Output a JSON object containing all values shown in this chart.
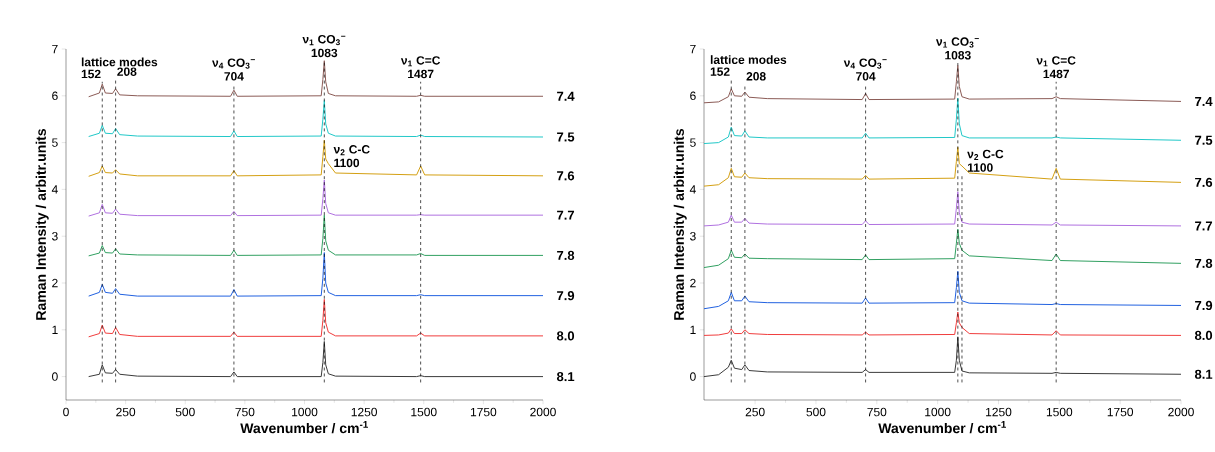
{
  "chart_data": [
    {
      "type": "line",
      "xlabel": "Wavenumber / cm$^{-1}$",
      "ylabel": "Raman Intensity / arbitr.units",
      "xlim": [
        0,
        2000
      ],
      "ylim": [
        -0.5,
        7
      ],
      "xticks": [
        0,
        250,
        500,
        750,
        1000,
        1250,
        1500,
        1750,
        2000
      ],
      "yticks": [
        0,
        1,
        2,
        3,
        4,
        5,
        6,
        7
      ],
      "x": [
        95,
        140,
        152,
        165,
        195,
        208,
        225,
        300,
        690,
        704,
        718,
        1070,
        1077,
        1083,
        1089,
        1100,
        1130,
        1470,
        1487,
        1504,
        2000
      ],
      "series": [
        {
          "name": "8.1",
          "color": "#3a3a3a",
          "values": [
            0,
            0.05,
            0.25,
            0.08,
            0.07,
            0.15,
            0.05,
            0.01,
            0,
            0.1,
            0,
            0,
            0.3,
            0.75,
            0.25,
            0.06,
            0.01,
            0,
            0.02,
            0,
            0
          ]
        },
        {
          "name": "8.0",
          "color": "#f03c3c",
          "values": [
            0.85,
            0.92,
            1.1,
            0.93,
            0.92,
            1.05,
            0.9,
            0.86,
            0.86,
            0.95,
            0.86,
            0.86,
            1.2,
            1.65,
            1.15,
            0.95,
            0.87,
            0.87,
            0.93,
            0.87,
            0.87
          ]
        },
        {
          "name": "7.9",
          "color": "#2060e0",
          "values": [
            1.72,
            1.8,
            1.97,
            1.8,
            1.78,
            1.88,
            1.76,
            1.72,
            1.72,
            1.86,
            1.72,
            1.73,
            2.1,
            2.65,
            2.0,
            1.8,
            1.73,
            1.73,
            1.75,
            1.73,
            1.73
          ]
        },
        {
          "name": "7.8",
          "color": "#30a060",
          "values": [
            2.58,
            2.64,
            2.8,
            2.65,
            2.64,
            2.73,
            2.62,
            2.6,
            2.59,
            2.7,
            2.59,
            2.6,
            2.95,
            3.45,
            2.9,
            2.7,
            2.6,
            2.6,
            2.63,
            2.59,
            2.59
          ]
        },
        {
          "name": "7.7",
          "color": "#b070e0",
          "values": [
            3.43,
            3.5,
            3.68,
            3.5,
            3.49,
            3.58,
            3.47,
            3.44,
            3.44,
            3.53,
            3.44,
            3.45,
            3.8,
            4.2,
            3.7,
            3.5,
            3.45,
            3.45,
            3.46,
            3.45,
            3.45
          ]
        },
        {
          "name": "7.6",
          "color": "#d4a012",
          "values": [
            4.28,
            4.36,
            4.5,
            4.36,
            4.35,
            4.42,
            4.33,
            4.29,
            4.29,
            4.4,
            4.29,
            4.31,
            4.7,
            5.05,
            4.65,
            4.55,
            4.35,
            4.31,
            4.5,
            4.31,
            4.29
          ]
        },
        {
          "name": "7.5",
          "color": "#20c8c8",
          "values": [
            5.13,
            5.2,
            5.37,
            5.2,
            5.19,
            5.3,
            5.17,
            5.14,
            5.13,
            5.25,
            5.13,
            5.14,
            5.5,
            5.9,
            5.4,
            5.2,
            5.14,
            5.13,
            5.16,
            5.13,
            5.12
          ]
        },
        {
          "name": "7.4",
          "color": "#8b5a55",
          "values": [
            5.98,
            6.06,
            6.25,
            6.06,
            6.05,
            6.15,
            6.02,
            6.0,
            5.99,
            6.12,
            5.99,
            6.0,
            6.35,
            6.75,
            6.3,
            6.05,
            6.0,
            5.99,
            6.01,
            5.99,
            5.99
          ]
        }
      ],
      "ref_lines": [
        {
          "axis": "x",
          "value": 152,
          "color": "#000000",
          "line_style": "dashed"
        },
        {
          "axis": "x",
          "value": 208,
          "color": "#000000",
          "line_style": "dashed"
        },
        {
          "axis": "x",
          "value": 704,
          "color": "#000000",
          "line_style": "dashed"
        },
        {
          "axis": "x",
          "value": 1083,
          "color": "#000000",
          "line_style": "dashed"
        },
        {
          "axis": "x",
          "value": 1487,
          "color": "#000000",
          "line_style": "dashed"
        }
      ],
      "annotations": [
        "lattice modes",
        {
          "text": "152",
          "x": 152,
          "y": 6.35
        },
        {
          "text": "208",
          "x": 208,
          "y": 6.4
        },
        "ν$_{4}$ CO$_{3}$$^{−}$",
        {
          "text": "704",
          "x": 704,
          "y": 6.3
        },
        "ν$_{1}$ CO$_{3}$$^{−}$",
        {
          "text": "1083",
          "x": 1083,
          "y": 6.8
        },
        "ν$_{1}$ C=C",
        {
          "text": "1487",
          "x": 1487,
          "y": 6.35
        },
        "ν$_{2}$ C-C",
        {
          "text": "1100",
          "x": 1100,
          "y": 4.45
        }
      ]
    },
    {
      "type": "line",
      "xlabel": "Wavenumber / cm$^{-1}$",
      "ylabel": "Raman Intensity / arbitr.units",
      "xlim": [
        40,
        2000
      ],
      "ylim": [
        -0.5,
        7
      ],
      "xticks": [
        250,
        500,
        750,
        1000,
        1250,
        1500,
        1750,
        2000
      ],
      "yticks": [
        0,
        1,
        2,
        3,
        4,
        5,
        6,
        7
      ],
      "x": [
        40,
        100,
        140,
        152,
        165,
        195,
        208,
        225,
        300,
        690,
        704,
        718,
        1070,
        1077,
        1083,
        1089,
        1100,
        1130,
        1470,
        1487,
        1504,
        2000
      ],
      "series": [
        {
          "name": "8.1",
          "color": "#3a3a3a",
          "values": [
            0,
            0.04,
            0.2,
            0.35,
            0.18,
            0.15,
            0.25,
            0.13,
            0.1,
            0.09,
            0.15,
            0.09,
            0.09,
            0.35,
            0.85,
            0.35,
            0.12,
            0.08,
            0.07,
            0.09,
            0.07,
            0.05
          ]
        },
        {
          "name": "8.0",
          "color": "#f03c3c",
          "values": [
            0.88,
            0.89,
            0.93,
            1.02,
            0.92,
            0.92,
            1.0,
            0.92,
            0.9,
            0.89,
            0.95,
            0.89,
            0.9,
            1.15,
            1.38,
            1.15,
            1.05,
            0.92,
            0.89,
            0.98,
            0.89,
            0.88
          ]
        },
        {
          "name": "7.9",
          "color": "#2060e0",
          "values": [
            1.45,
            1.5,
            1.62,
            1.8,
            1.62,
            1.62,
            1.72,
            1.6,
            1.58,
            1.57,
            1.68,
            1.57,
            1.58,
            1.9,
            2.25,
            1.8,
            1.62,
            1.57,
            1.54,
            1.56,
            1.54,
            1.52
          ]
        },
        {
          "name": "7.8",
          "color": "#30a060",
          "values": [
            2.33,
            2.38,
            2.52,
            2.7,
            2.55,
            2.54,
            2.62,
            2.53,
            2.52,
            2.5,
            2.6,
            2.5,
            2.52,
            2.85,
            3.15,
            2.85,
            2.7,
            2.58,
            2.48,
            2.62,
            2.48,
            2.42
          ]
        },
        {
          "name": "7.7",
          "color": "#b070e0",
          "values": [
            3.22,
            3.24,
            3.3,
            3.45,
            3.3,
            3.3,
            3.38,
            3.28,
            3.26,
            3.25,
            3.33,
            3.25,
            3.26,
            3.6,
            3.95,
            3.5,
            3.3,
            3.26,
            3.24,
            3.3,
            3.24,
            3.22
          ]
        },
        {
          "name": "7.6",
          "color": "#d4a012",
          "values": [
            4.07,
            4.1,
            4.25,
            4.45,
            4.27,
            4.26,
            4.35,
            4.25,
            4.23,
            4.22,
            4.3,
            4.22,
            4.24,
            4.6,
            4.9,
            4.55,
            4.5,
            4.35,
            4.22,
            4.45,
            4.22,
            4.15
          ]
        },
        {
          "name": "7.5",
          "color": "#20c8c8",
          "values": [
            4.98,
            5.0,
            5.12,
            5.33,
            5.15,
            5.14,
            5.25,
            5.12,
            5.1,
            5.1,
            5.2,
            5.1,
            5.11,
            5.5,
            5.95,
            5.4,
            5.15,
            5.1,
            5.1,
            5.12,
            5.1,
            5.05
          ]
        },
        {
          "name": "7.4",
          "color": "#8b5a55",
          "values": [
            5.85,
            5.87,
            5.98,
            6.15,
            6.0,
            5.99,
            6.08,
            5.97,
            5.94,
            5.92,
            6.05,
            5.92,
            5.93,
            6.3,
            6.65,
            6.2,
            5.98,
            5.93,
            5.94,
            5.98,
            5.94,
            5.88
          ]
        }
      ],
      "ref_lines": [
        {
          "axis": "x",
          "value": 152,
          "color": "#000000",
          "line_style": "dashed"
        },
        {
          "axis": "x",
          "value": 208,
          "color": "#000000",
          "line_style": "dashed"
        },
        {
          "axis": "x",
          "value": 704,
          "color": "#000000",
          "line_style": "dashed"
        },
        {
          "axis": "x",
          "value": 1083,
          "color": "#000000",
          "line_style": "dashed"
        },
        {
          "axis": "x",
          "value": 1100,
          "color": "#000000",
          "line_style": "dashed"
        },
        {
          "axis": "x",
          "value": 1487,
          "color": "#000000",
          "line_style": "dashed"
        }
      ],
      "annotations": [
        "lattice modes",
        {
          "text": "152",
          "x": 152,
          "y": 6.4
        },
        {
          "text": "208",
          "x": 208,
          "y": 6.3
        },
        "ν$_{4}$ CO$_{3}$$^{−}$",
        {
          "text": "704",
          "x": 704,
          "y": 6.3
        },
        "ν$_{1}$ CO$_{3}$$^{−}$",
        {
          "text": "1083",
          "x": 1083,
          "y": 6.75
        },
        "ν$_{1}$ C=C",
        {
          "text": "1487",
          "x": 1487,
          "y": 6.35
        },
        "ν$_{2}$ C-C",
        {
          "text": "1100",
          "x": 1100,
          "y": 4.35
        }
      ]
    }
  ]
}
